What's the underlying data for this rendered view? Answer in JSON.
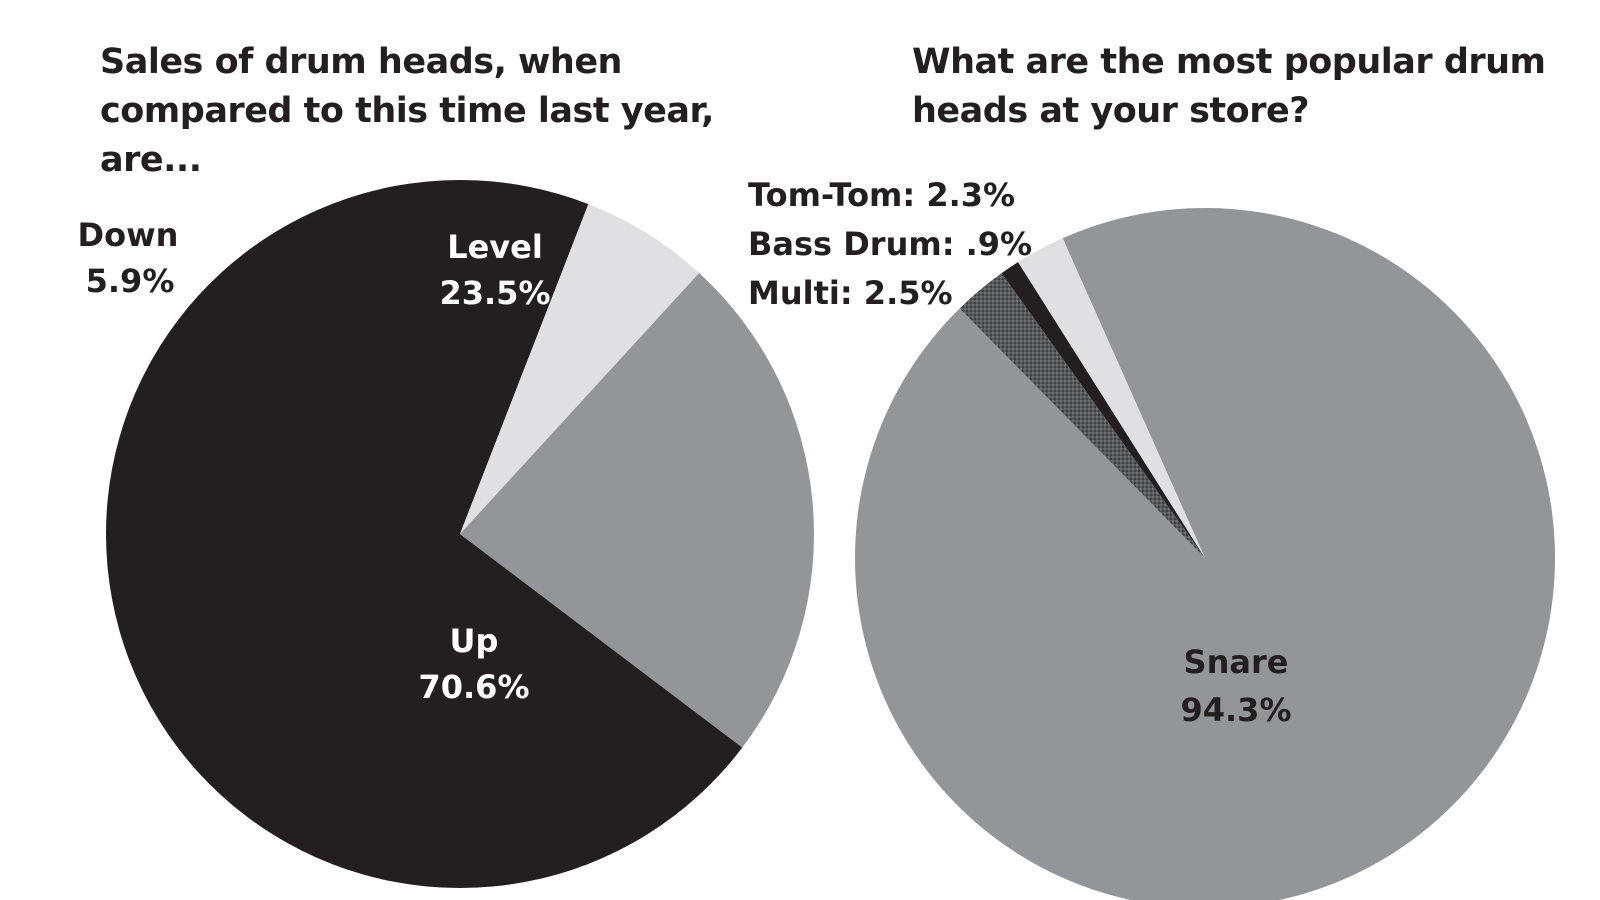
{
  "colors": {
    "black": "#231f20",
    "gray": "#939598",
    "light": "#e0e0e2",
    "dark_gray": "#58595b",
    "white": "#ffffff"
  },
  "chart_data": [
    {
      "type": "pie",
      "title": "Sales of drum heads, when compared to this time last year, are...",
      "slices": [
        {
          "label": "Up",
          "value": 70.6,
          "value_text": "70.6%",
          "color": "#231f20"
        },
        {
          "label": "Down",
          "value": 5.9,
          "value_text": "5.9%",
          "color": "#e0e0e2"
        },
        {
          "label": "Level",
          "value": 23.5,
          "value_text": "23.5%",
          "color": "#939598"
        }
      ]
    },
    {
      "type": "pie",
      "title": "What are the most popular drum heads at your store?",
      "slices": [
        {
          "label": "Snare",
          "value": 94.3,
          "value_text": "94.3%",
          "color": "#939598"
        },
        {
          "label": "Multi",
          "value": 2.5,
          "value_text": "2.5%",
          "color": "#58595b"
        },
        {
          "label": "Bass Drum",
          "value": 0.9,
          "value_text": ".9%",
          "color": "#231f20"
        },
        {
          "label": "Tom-Tom",
          "value": 2.3,
          "value_text": "2.3%",
          "color": "#e0e0e2"
        }
      ]
    }
  ]
}
